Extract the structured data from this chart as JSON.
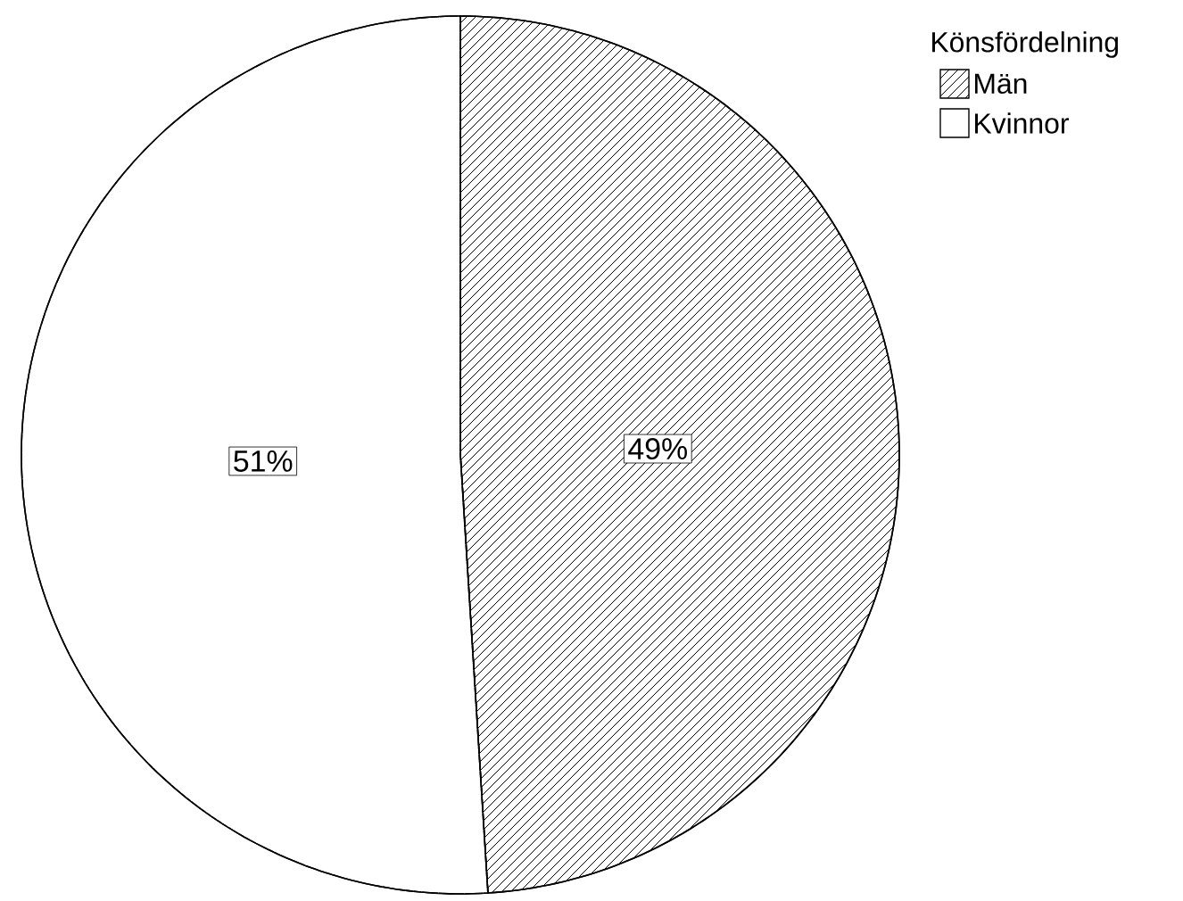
{
  "chart_data": {
    "type": "pie",
    "legend_title": "Könsfördelning",
    "categories": [
      "Män",
      "Kvinnor"
    ],
    "values": [
      49,
      51
    ],
    "colors": [
      "#000000",
      "#ffffff"
    ],
    "value_labels": [
      "49%",
      "51%"
    ],
    "legend": "top right"
  }
}
